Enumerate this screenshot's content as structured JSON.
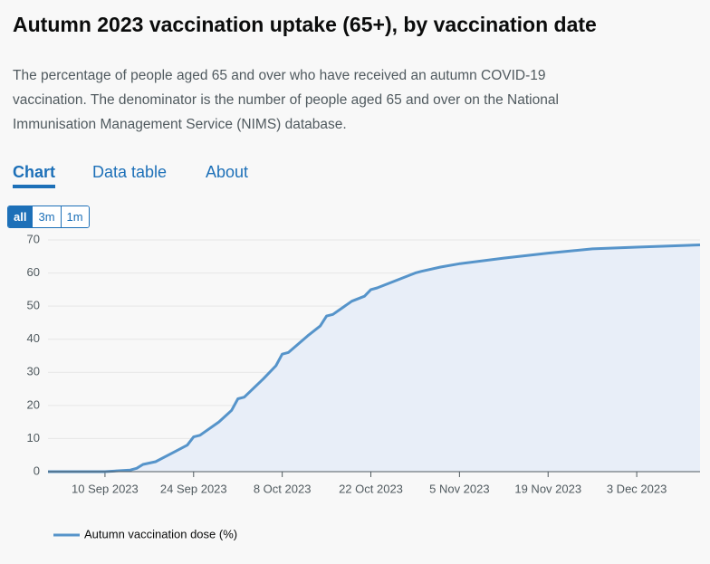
{
  "header": {
    "title": "Autumn 2023 vaccination uptake (65+), by vaccination date",
    "description": "The percentage of people aged 65 and over who have received an autumn COVID-19 vaccination. The denominator is the number of people aged 65 and over on the National Immunisation Management Service (NIMS) database."
  },
  "tabs": [
    "Chart",
    "Data table",
    "About"
  ],
  "range_buttons": [
    "all",
    "3m",
    "1m"
  ],
  "chart_data": {
    "type": "line",
    "x": [
      "2023-09-01",
      "2023-09-10",
      "2023-09-14",
      "2023-09-15",
      "2023-09-16",
      "2023-09-18",
      "2023-09-21",
      "2023-09-23",
      "2023-09-24",
      "2023-09-25",
      "2023-09-28",
      "2023-09-30",
      "2023-10-01",
      "2023-10-02",
      "2023-10-05",
      "2023-10-07",
      "2023-10-08",
      "2023-10-09",
      "2023-10-12",
      "2023-10-14",
      "2023-10-15",
      "2023-10-16",
      "2023-10-19",
      "2023-10-21",
      "2023-10-22",
      "2023-10-23",
      "2023-10-29",
      "2023-10-30",
      "2023-11-02",
      "2023-11-05",
      "2023-11-12",
      "2023-11-19",
      "2023-11-26",
      "2023-12-03",
      "2023-12-13"
    ],
    "series": [
      {
        "name": "Autumn vaccination dose (%)",
        "color": "#5694ca",
        "values": [
          0,
          0,
          0.5,
          1,
          2.2,
          3,
          6,
          8,
          10.5,
          11,
          15,
          18.5,
          22,
          22.5,
          28,
          32,
          35.5,
          36,
          41,
          44,
          47,
          47.5,
          51.5,
          53,
          55,
          55.5,
          60,
          60.5,
          61.8,
          62.8,
          64.5,
          66,
          67.3,
          67.8,
          68.5
        ]
      }
    ],
    "xlim": [
      "2023-09-01",
      "2023-12-13"
    ],
    "xticks": [
      {
        "value": "2023-09-10",
        "label": "10 Sep 2023"
      },
      {
        "value": "2023-09-24",
        "label": "24 Sep 2023"
      },
      {
        "value": "2023-10-08",
        "label": "8 Oct 2023"
      },
      {
        "value": "2023-10-22",
        "label": "22 Oct 2023"
      },
      {
        "value": "2023-11-05",
        "label": "5 Nov 2023"
      },
      {
        "value": "2023-11-19",
        "label": "19 Nov 2023"
      },
      {
        "value": "2023-12-03",
        "label": "3 Dec 2023"
      }
    ],
    "ylim": [
      0,
      70
    ],
    "yticks": [
      0,
      10,
      20,
      30,
      40,
      50,
      60,
      70
    ],
    "grid": true
  }
}
